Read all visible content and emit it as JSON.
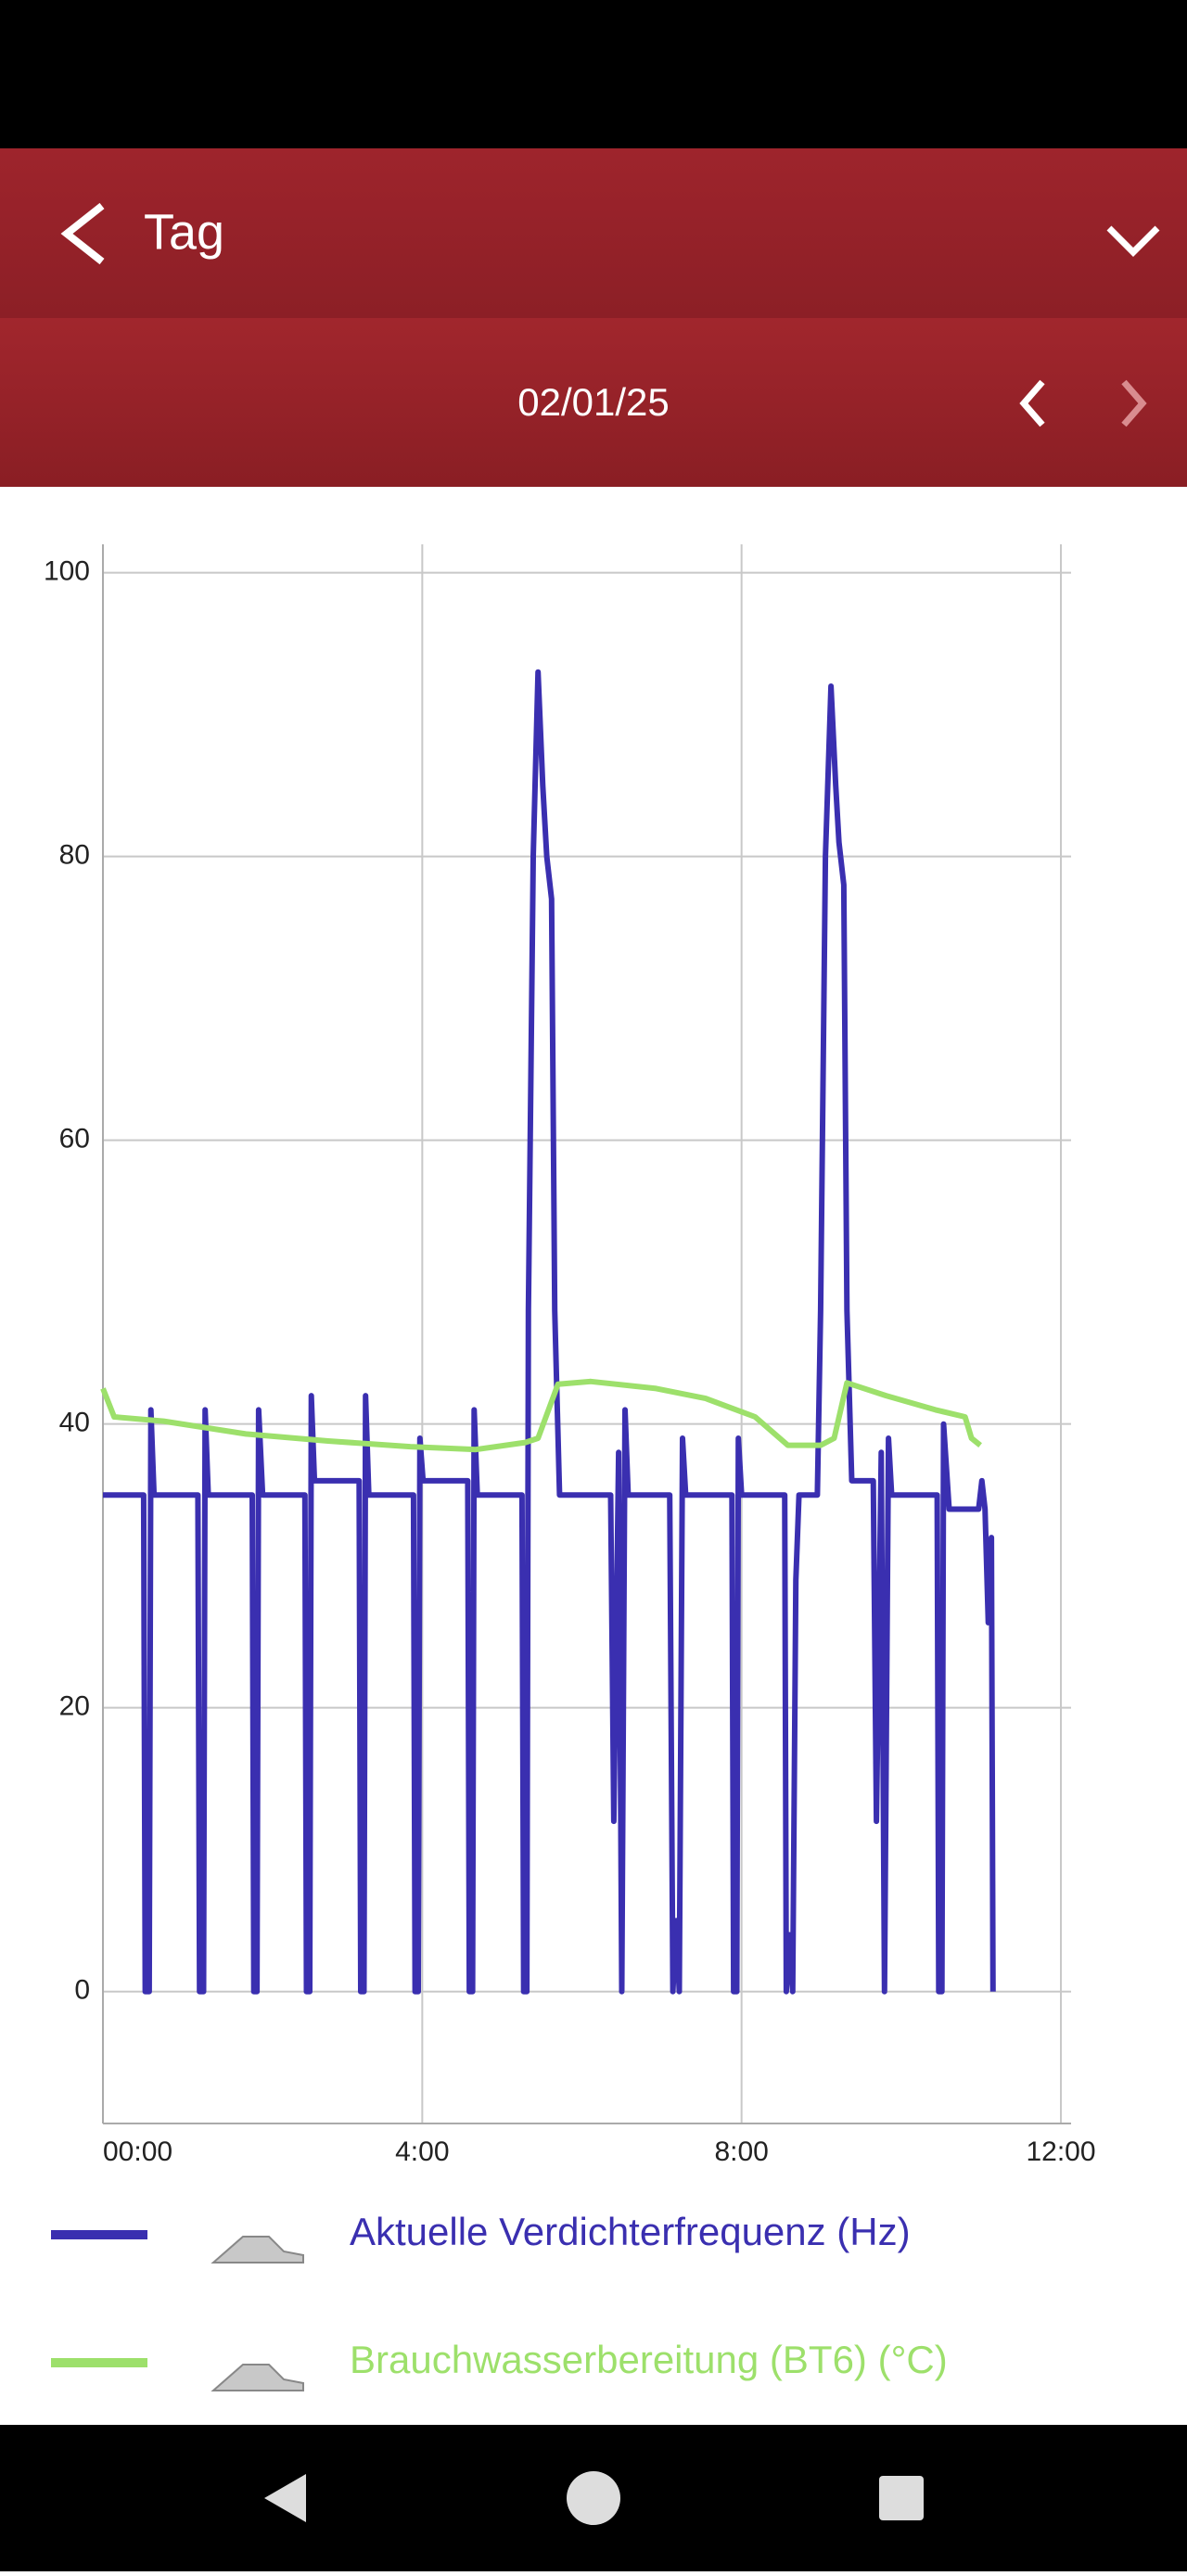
{
  "header": {
    "title": "Tag",
    "date": "02/01/25"
  },
  "chart_data": {
    "type": "line",
    "xlim": [
      0,
      12
    ],
    "xticks": [
      {
        "value": 0,
        "label": "00:00"
      },
      {
        "value": 4,
        "label": "4:00"
      },
      {
        "value": 8,
        "label": "8:00"
      },
      {
        "value": 12,
        "label": "12:00"
      }
    ],
    "ylim": [
      -9.3,
      102
    ],
    "yticks": [
      0,
      20,
      40,
      60,
      80,
      100
    ],
    "grid": true,
    "series": [
      {
        "name": "Aktuelle Verdichterfrequenz (Hz)",
        "color": "#3a2fb0",
        "x": [
          0,
          0.51,
          0.53,
          0.58,
          0.6,
          0.64,
          1.19,
          1.21,
          1.26,
          1.28,
          1.32,
          1.87,
          1.89,
          1.93,
          1.95,
          2.0,
          2.53,
          2.55,
          2.59,
          2.61,
          2.65,
          3.21,
          3.23,
          3.27,
          3.29,
          3.33,
          3.89,
          3.91,
          3.95,
          3.97,
          4.01,
          4.57,
          4.59,
          4.63,
          4.65,
          4.69,
          5.25,
          5.27,
          5.31,
          5.33,
          5.39,
          5.45,
          5.51,
          5.56,
          5.62,
          5.66,
          5.72,
          6.36,
          6.4,
          6.46,
          6.5,
          6.54,
          6.58,
          7.1,
          7.14,
          7.18,
          7.22,
          7.26,
          7.3,
          7.88,
          7.9,
          7.94,
          7.96,
          8.0,
          8.54,
          8.56,
          8.6,
          8.64,
          8.68,
          8.72,
          8.95,
          8.99,
          9.05,
          9.12,
          9.18,
          9.22,
          9.28,
          9.32,
          9.38,
          9.65,
          9.69,
          9.75,
          9.79,
          9.84,
          9.88,
          10.45,
          10.47,
          10.51,
          10.53,
          10.6,
          10.97,
          11.01,
          11.05,
          11.09,
          11.13,
          11.15
        ],
        "values": [
          35,
          35,
          0,
          0,
          41,
          35,
          35,
          0,
          0,
          41,
          35,
          35,
          0,
          0,
          41,
          35,
          35,
          0,
          0,
          42,
          36,
          36,
          0,
          0,
          42,
          35,
          35,
          0,
          0,
          39,
          36,
          36,
          0,
          0,
          41,
          35,
          35,
          0,
          0,
          48,
          80,
          93,
          85,
          80,
          77,
          48,
          35,
          35,
          12,
          38,
          0,
          41,
          35,
          35,
          0,
          5,
          0,
          39,
          35,
          35,
          0,
          0,
          39,
          35,
          35,
          0,
          4,
          0,
          29,
          35,
          35,
          48,
          80,
          92,
          85,
          81,
          78,
          48,
          36,
          36,
          12,
          38,
          0,
          39,
          35,
          35,
          0,
          0,
          40,
          34,
          34,
          36,
          34,
          26,
          32,
          0
        ]
      },
      {
        "name": "Brauchwasserbereitung (BT6) (°C)",
        "color": "#9de06b",
        "x": [
          0,
          0.14,
          0.76,
          1.79,
          2.82,
          3.85,
          4.67,
          5.29,
          5.45,
          5.7,
          6.11,
          6.93,
          7.55,
          8.17,
          8.58,
          8.99,
          9.16,
          9.32,
          9.81,
          10.43,
          10.8,
          10.88,
          10.99
        ],
        "values": [
          42.5,
          40.5,
          40.2,
          39.3,
          38.8,
          38.4,
          38.2,
          38.7,
          39,
          42.8,
          43,
          42.5,
          41.8,
          40.5,
          38.5,
          38.5,
          39,
          42.9,
          42,
          41,
          40.5,
          39,
          38.5
        ]
      }
    ]
  }
}
